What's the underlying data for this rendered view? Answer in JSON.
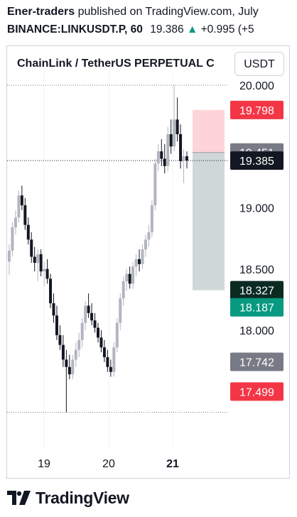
{
  "header": {
    "author": "Ener-traders",
    "published": "published on TradingView.com, July",
    "symbol": "BINANCE:LINKUSDT.P, 60",
    "price": "19.386",
    "change_arrow": "▲",
    "change": "+0.995 (+5"
  },
  "chart_title": "ChainLink / TetherUS PERPETUAL C",
  "currency": "USDT",
  "footer": {
    "brand": "TradingView"
  },
  "colors": {
    "up": "#089981",
    "down": "#131722",
    "bear": "#131722",
    "bull": "#b2b5be",
    "target_zone": "#ffcdd2",
    "stop_zone": "#cfd8d6",
    "red_tag": "#f23645",
    "gray_tag": "#787b86",
    "dark_tag": "#131722",
    "green_tag": "#089981"
  },
  "chart_data": {
    "type": "candlestick",
    "y_ticks": [
      "20.000",
      "19.000",
      "18.500",
      "18.000"
    ],
    "y_tick_values": [
      20.0,
      19.0,
      18.5,
      18.0
    ],
    "x_ticks": [
      {
        "label": "19",
        "bold": false
      },
      {
        "label": "20",
        "bold": false
      },
      {
        "label": "21",
        "bold": true
      }
    ],
    "price_tags": [
      {
        "label": "19.798",
        "value": 19.798,
        "color": "#f23645"
      },
      {
        "label": "19.451",
        "value": 19.451,
        "color": "#787b86"
      },
      {
        "label": "19.385",
        "value": 19.385,
        "color": "#131722"
      },
      {
        "label": "18.327",
        "value": 18.327,
        "color": "#0b2a22"
      },
      {
        "label": "18.187",
        "value": 18.187,
        "color": "#089981"
      },
      {
        "label": "17.742",
        "value": 17.742,
        "color": "#787b86"
      },
      {
        "label": "17.499",
        "value": 17.499,
        "color": "#f23645"
      }
    ],
    "high_line": 20.0,
    "low_line": 17.33,
    "last_price_line": 19.385,
    "position": {
      "entry": 19.451,
      "target": 19.798,
      "stop": 18.327
    },
    "candles": [
      [
        18.56,
        18.7,
        18.45,
        18.65
      ],
      [
        18.65,
        18.88,
        18.6,
        18.84
      ],
      [
        18.84,
        18.98,
        18.78,
        18.92
      ],
      [
        18.92,
        19.14,
        18.88,
        19.1
      ],
      [
        19.1,
        19.18,
        18.98,
        19.02
      ],
      [
        19.02,
        19.08,
        18.82,
        18.86
      ],
      [
        18.86,
        18.92,
        18.7,
        18.74
      ],
      [
        18.74,
        18.8,
        18.55,
        18.6
      ],
      [
        18.6,
        18.68,
        18.48,
        18.55
      ],
      [
        18.55,
        18.66,
        18.4,
        18.62
      ],
      [
        18.62,
        18.66,
        18.44,
        18.48
      ],
      [
        18.48,
        18.56,
        18.36,
        18.5
      ],
      [
        18.5,
        18.58,
        18.38,
        18.42
      ],
      [
        18.42,
        18.46,
        18.18,
        18.22
      ],
      [
        18.22,
        18.3,
        18.06,
        18.12
      ],
      [
        18.12,
        18.2,
        17.92,
        17.96
      ],
      [
        17.96,
        18.04,
        17.84,
        17.88
      ],
      [
        17.88,
        17.96,
        17.7,
        17.76
      ],
      [
        17.76,
        17.84,
        17.33,
        17.7
      ],
      [
        17.7,
        17.8,
        17.6,
        17.64
      ],
      [
        17.64,
        17.8,
        17.6,
        17.76
      ],
      [
        17.76,
        17.9,
        17.7,
        17.84
      ],
      [
        17.84,
        17.98,
        17.78,
        17.92
      ],
      [
        17.92,
        18.1,
        17.86,
        18.06
      ],
      [
        18.06,
        18.24,
        18.0,
        18.2
      ],
      [
        18.2,
        18.3,
        18.1,
        18.14
      ],
      [
        18.14,
        18.22,
        18.04,
        18.08
      ],
      [
        18.08,
        18.14,
        17.98,
        18.02
      ],
      [
        18.02,
        18.06,
        17.9,
        17.94
      ],
      [
        17.94,
        18.0,
        17.82,
        17.86
      ],
      [
        17.86,
        17.92,
        17.74,
        17.78
      ],
      [
        17.78,
        17.84,
        17.66,
        17.7
      ],
      [
        17.7,
        17.76,
        17.62,
        17.66
      ],
      [
        17.66,
        17.9,
        17.62,
        17.86
      ],
      [
        17.86,
        18.1,
        17.82,
        18.06
      ],
      [
        18.06,
        18.3,
        18.0,
        18.26
      ],
      [
        18.26,
        18.44,
        18.2,
        18.4
      ],
      [
        18.4,
        18.5,
        18.32,
        18.46
      ],
      [
        18.46,
        18.52,
        18.34,
        18.38
      ],
      [
        18.38,
        18.56,
        18.34,
        18.52
      ],
      [
        18.52,
        18.62,
        18.44,
        18.58
      ],
      [
        18.58,
        18.66,
        18.48,
        18.54
      ],
      [
        18.54,
        18.7,
        18.5,
        18.66
      ],
      [
        18.66,
        18.78,
        18.6,
        18.74
      ],
      [
        18.74,
        18.86,
        18.68,
        18.8
      ],
      [
        18.8,
        19.06,
        18.76,
        19.02
      ],
      [
        19.02,
        19.4,
        18.98,
        19.36
      ],
      [
        19.36,
        19.52,
        19.3,
        19.46
      ],
      [
        19.46,
        19.56,
        19.34,
        19.4
      ],
      [
        19.4,
        19.52,
        19.28,
        19.34
      ],
      [
        19.34,
        19.66,
        19.3,
        19.6
      ],
      [
        19.6,
        19.72,
        19.44,
        19.5
      ],
      [
        19.5,
        20.0,
        19.46,
        19.72
      ],
      [
        19.72,
        19.9,
        19.54,
        19.6
      ],
      [
        19.6,
        19.68,
        19.32,
        19.38
      ],
      [
        19.38,
        19.48,
        19.2,
        19.42
      ],
      [
        19.42,
        19.46,
        19.32,
        19.385
      ]
    ]
  }
}
